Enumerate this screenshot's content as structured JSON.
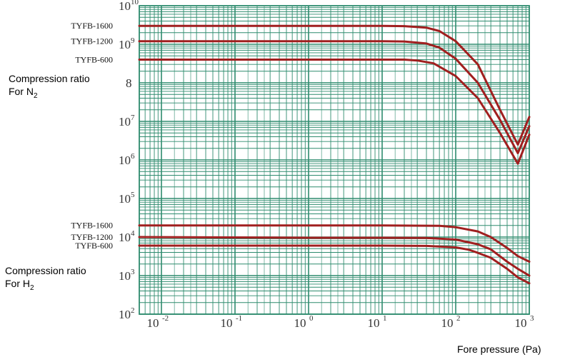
{
  "chart_data": {
    "type": "line",
    "xscale": "log",
    "yscale": "log",
    "xlim": [
      0.005,
      1000
    ],
    "ylim": [
      100,
      10000000000
    ],
    "xticks": [
      {
        "mantissa": "10",
        "exp": "-2"
      },
      {
        "mantissa": "10",
        "exp": "-1"
      },
      {
        "mantissa": "10",
        "exp": "0"
      },
      {
        "mantissa": "10",
        "exp": "1"
      },
      {
        "mantissa": "10",
        "exp": "2"
      },
      {
        "mantissa": "10",
        "exp": "3"
      }
    ],
    "yticks": [
      {
        "mantissa": "10",
        "exp": "2"
      },
      {
        "mantissa": "10",
        "exp": "3"
      },
      {
        "mantissa": "10",
        "exp": "4"
      },
      {
        "mantissa": "10",
        "exp": "5"
      },
      {
        "mantissa": "10",
        "exp": "6"
      },
      {
        "mantissa": "10",
        "exp": "7"
      },
      {
        "mantissa": "",
        "exp": "8"
      },
      {
        "mantissa": "10",
        "exp": "9"
      },
      {
        "mantissa": "10",
        "exp": "10"
      }
    ],
    "xlabel": "Fore pressure (Pa)",
    "ylabel_groups": [
      {
        "line1": "Compression ratio",
        "line2_prefix": "For N",
        "line2_sub": "2"
      },
      {
        "line1": "Compression ratio",
        "line2_prefix": "For H",
        "line2_sub": "2"
      }
    ],
    "grid": true,
    "series": [
      {
        "name": "TYFB-1600",
        "group": "N2",
        "x": [
          0.005,
          1,
          10,
          20,
          40,
          60,
          100,
          200,
          400,
          700,
          1000
        ],
        "y": [
          3000000000,
          3000000000,
          3000000000,
          2950000000,
          2700000000,
          2200000000,
          1200000000,
          300000000,
          20000000,
          2500000,
          13000000.0
        ]
      },
      {
        "name": "TYFB-1200",
        "group": "N2",
        "x": [
          0.005,
          1,
          10,
          20,
          40,
          60,
          100,
          200,
          400,
          700,
          1000
        ],
        "y": [
          1200000000,
          1200000000,
          1200000000,
          1180000000,
          1050000000,
          820000000,
          420000000,
          100000000,
          11000000,
          1500000,
          7500000
        ]
      },
      {
        "name": "TYFB-600",
        "group": "N2",
        "x": [
          0.005,
          1,
          10,
          20,
          30,
          50,
          100,
          200,
          400,
          700,
          1000
        ],
        "y": [
          400000000,
          400000000,
          400000000,
          400000000,
          380000000,
          320000000,
          150000000,
          40000000,
          5000000,
          800000,
          4500000
        ]
      },
      {
        "name": "TYFB-1600",
        "group": "H2",
        "x": [
          0.005,
          1,
          10,
          60,
          100,
          200,
          300,
          500,
          700,
          1000
        ],
        "y": [
          20000,
          20000,
          20000,
          19500,
          18000,
          14000,
          10000,
          5200,
          3200,
          2300
        ]
      },
      {
        "name": "TYFB-1200",
        "group": "H2",
        "x": [
          0.005,
          1,
          10,
          40,
          100,
          200,
          300,
          500,
          700,
          1000
        ],
        "y": [
          10000,
          9600,
          9600,
          9500,
          8600,
          6500,
          4800,
          2300,
          1500,
          1000
        ]
      },
      {
        "name": "TYFB-600",
        "group": "H2",
        "x": [
          0.005,
          1,
          10,
          40,
          100,
          150,
          200,
          300,
          500,
          700,
          1000
        ],
        "y": [
          6000,
          6000,
          6000,
          5900,
          5400,
          4700,
          3900,
          2900,
          1500,
          900,
          630
        ]
      }
    ]
  },
  "colors": {
    "grid": "#2e8b6e",
    "curve": "#a01f1f",
    "background": "#ffffff"
  }
}
